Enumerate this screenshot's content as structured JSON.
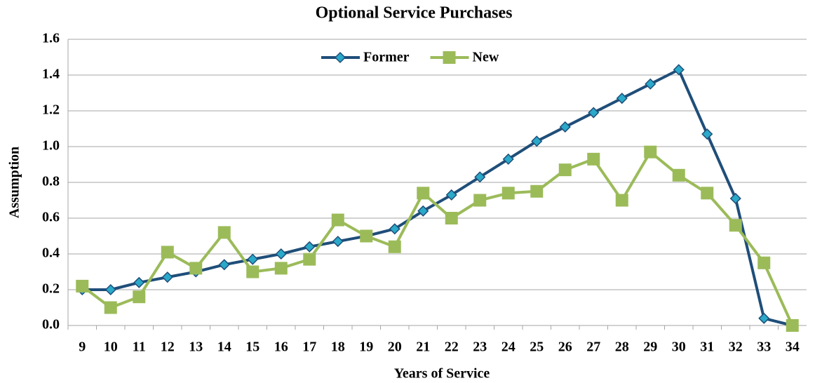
{
  "chart_data": {
    "type": "line",
    "title": "Optional Service Purchases",
    "x_label": "Years of Service",
    "y_label": "Assumption",
    "categories": [
      "9",
      "10",
      "11",
      "12",
      "13",
      "14",
      "15",
      "16",
      "17",
      "18",
      "19",
      "20",
      "21",
      "22",
      "23",
      "24",
      "25",
      "26",
      "27",
      "28",
      "29",
      "30",
      "31",
      "32",
      "33",
      "34"
    ],
    "series": [
      {
        "name": "Former",
        "color": "#1f4e79",
        "marker": "diamond",
        "marker_color": "#2aa9c9",
        "values": [
          0.2,
          0.2,
          0.24,
          0.27,
          0.3,
          0.34,
          0.37,
          0.4,
          0.44,
          0.47,
          0.5,
          0.54,
          0.64,
          0.73,
          0.83,
          0.93,
          1.03,
          1.11,
          1.19,
          1.27,
          1.35,
          1.43,
          1.07,
          0.71,
          0.04,
          0.0
        ]
      },
      {
        "name": "New",
        "color": "#9bbb59",
        "marker": "square",
        "marker_color": "#9bbb59",
        "values": [
          0.22,
          0.1,
          0.16,
          0.41,
          0.32,
          0.52,
          0.3,
          0.32,
          0.37,
          0.59,
          0.5,
          0.44,
          0.74,
          0.6,
          0.7,
          0.74,
          0.75,
          0.87,
          0.93,
          0.7,
          0.97,
          0.84,
          0.74,
          0.56,
          0.35,
          0.0
        ]
      }
    ],
    "ylim": [
      0,
      1.6
    ],
    "yticks": [
      {
        "value": 0,
        "label": "0.0"
      },
      0.2,
      0.4,
      0.6,
      0.8,
      {
        "value": 1,
        "label": "1.0"
      },
      1.2,
      1.4,
      1.6
    ],
    "grid": true,
    "legend": "top"
  }
}
